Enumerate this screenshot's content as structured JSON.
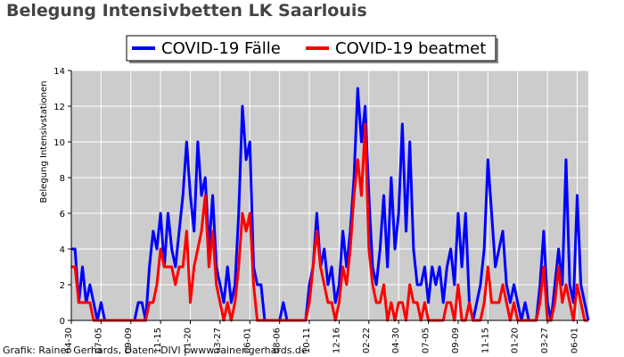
{
  "title": "Belegung Intensivbetten LK Saarlouis",
  "credit": "Grafik: Rainer Gerhards, Daten: DIVI | www.rainer-gerhards.de",
  "colors": {
    "plot_bg": "#cccccc",
    "grid": "#ffffff",
    "cases": "#0000ff",
    "ventilated": "#ff0000"
  },
  "chart_data": {
    "type": "line",
    "title": "Belegung Intensivbetten LK Saarlouis",
    "xlabel": "",
    "ylabel": "Belegung Intensivstationen",
    "ylim": [
      0,
      14
    ],
    "yticks": [
      0,
      2,
      4,
      6,
      8,
      10,
      12,
      14
    ],
    "xlim_index": [
      0,
      139
    ],
    "x_tick_labels": [
      "04-30",
      "07-05",
      "09-09",
      "11-15",
      "01-20",
      "03-27",
      "06-01",
      "08-06",
      "10-11",
      "12-16",
      "02-22",
      "04-30",
      "07-05",
      "09-09",
      "11-15",
      "01-20",
      "03-27",
      "06-01"
    ],
    "x_tick_positions": [
      0,
      8,
      16,
      24,
      32,
      40,
      48,
      56,
      64,
      72,
      80,
      88,
      96,
      104,
      112,
      120,
      128,
      136
    ],
    "grid": true,
    "legend_placement": "top-center",
    "series": [
      {
        "name": "COVID-19 Fälle",
        "values": [
          4,
          4,
          1,
          3,
          1,
          2,
          1,
          0,
          1,
          0,
          0,
          0,
          0,
          0,
          0,
          0,
          0,
          0,
          1,
          1,
          0,
          3,
          5,
          4,
          6,
          3,
          6,
          4,
          3,
          5,
          7,
          10,
          7,
          5,
          10,
          7,
          8,
          4,
          7,
          3,
          2,
          1,
          3,
          1,
          2,
          6,
          12,
          9,
          10,
          3,
          2,
          2,
          0,
          0,
          0,
          0,
          0,
          1,
          0,
          0,
          0,
          0,
          0,
          0,
          2,
          3,
          6,
          3,
          4,
          2,
          3,
          1,
          2,
          5,
          3,
          5,
          8,
          13,
          10,
          12,
          7,
          3,
          2,
          4,
          7,
          3,
          8,
          4,
          6,
          11,
          5,
          10,
          4,
          2,
          2,
          3,
          1,
          3,
          2,
          3,
          1,
          3,
          4,
          2,
          6,
          3,
          6,
          1,
          0,
          1,
          2,
          4,
          9,
          6,
          3,
          4,
          5,
          2,
          1,
          2,
          1,
          0,
          1,
          0,
          0,
          0,
          2,
          5,
          1,
          0,
          2,
          4,
          2,
          9,
          2,
          1,
          7,
          2,
          1,
          0
        ]
      },
      {
        "name": "COVID-19 beatmet",
        "values": [
          3,
          3,
          1,
          1,
          1,
          1,
          0,
          0,
          0,
          0,
          0,
          0,
          0,
          0,
          0,
          0,
          0,
          0,
          0,
          0,
          0,
          1,
          1,
          2,
          4,
          3,
          3,
          3,
          2,
          3,
          3,
          5,
          1,
          3,
          4,
          5,
          7,
          3,
          5,
          2,
          1,
          0,
          1,
          0,
          1,
          3,
          6,
          5,
          6,
          2,
          0,
          0,
          0,
          0,
          0,
          0,
          0,
          0,
          0,
          0,
          0,
          0,
          0,
          0,
          1,
          3,
          5,
          3,
          2,
          1,
          1,
          0,
          1,
          3,
          2,
          4,
          7,
          9,
          7,
          11,
          4,
          2,
          1,
          1,
          2,
          0,
          1,
          0,
          1,
          1,
          0,
          2,
          1,
          1,
          0,
          1,
          0,
          0,
          0,
          0,
          0,
          1,
          1,
          0,
          2,
          0,
          0,
          1,
          0,
          0,
          0,
          1,
          3,
          1,
          1,
          1,
          2,
          1,
          0,
          1,
          0,
          0,
          0,
          0,
          0,
          0,
          1,
          3,
          0,
          0,
          1,
          3,
          1,
          2,
          1,
          0,
          2,
          1,
          0,
          0
        ]
      }
    ]
  }
}
